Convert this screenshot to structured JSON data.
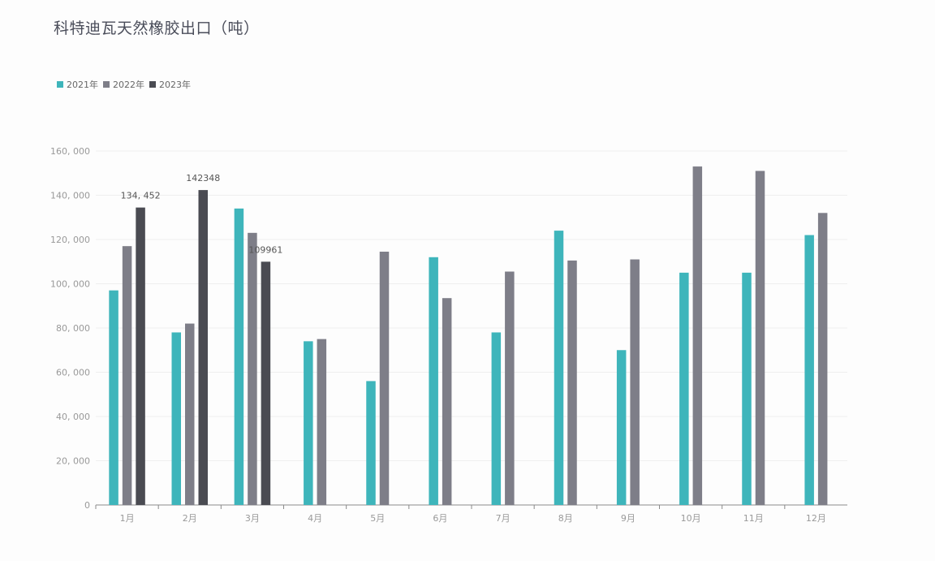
{
  "chart_data": {
    "type": "bar",
    "title": "科特迪瓦天然橡胶出口（吨）",
    "categories": [
      "1月",
      "2月",
      "3月",
      "4月",
      "5月",
      "6月",
      "7月",
      "8月",
      "9月",
      "10月",
      "11月",
      "12月"
    ],
    "ylim": [
      0,
      160000
    ],
    "yticks": [
      "0",
      "20, 000",
      "40, 000",
      "60, 000",
      "80, 000",
      "100, 000",
      "120, 000",
      "140, 000",
      "160, 000"
    ],
    "grid": true,
    "legend_position": "top-left",
    "series": [
      {
        "name": "2021年",
        "color": "#3eb5bb",
        "values": [
          97000,
          78000,
          134000,
          74000,
          56000,
          112000,
          78000,
          124000,
          70000,
          105000,
          105000,
          122000
        ]
      },
      {
        "name": "2022年",
        "color": "#7e7e88",
        "values": [
          117000,
          82000,
          123000,
          75000,
          114500,
          93500,
          105500,
          110500,
          111000,
          153000,
          151000,
          132000
        ]
      },
      {
        "name": "2023年",
        "color": "#4a4b52",
        "values": [
          134452,
          142348,
          109961,
          null,
          null,
          null,
          null,
          null,
          null,
          null,
          null,
          null
        ]
      }
    ],
    "data_labels": [
      {
        "series": 2,
        "index": 0,
        "text": "134, 452"
      },
      {
        "series": 2,
        "index": 1,
        "text": "142348"
      },
      {
        "series": 2,
        "index": 2,
        "text": "109961"
      }
    ]
  }
}
